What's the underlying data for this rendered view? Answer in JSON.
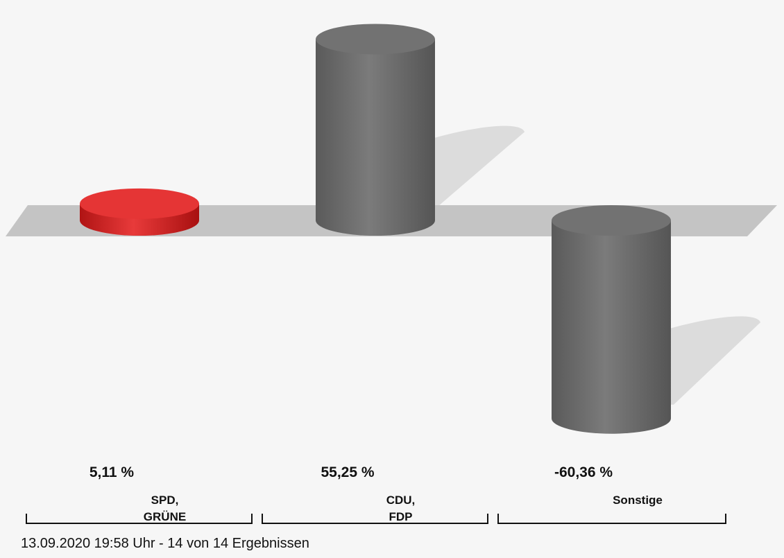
{
  "chart_data": {
    "type": "bar",
    "categories": [
      [
        "SPD,",
        "GRÜNE"
      ],
      [
        "CDU,",
        "FDP"
      ],
      [
        "Sonstige"
      ]
    ],
    "values": [
      5.11,
      55.25,
      -60.36
    ],
    "value_labels": [
      "5,11 %",
      "55,25 %",
      "-60,36 %"
    ],
    "ylim": [
      -65,
      65
    ],
    "grid": false,
    "title": "",
    "xlabel": "",
    "ylabel": ""
  },
  "colors": {
    "bars": [
      "#e02c2c",
      "#6f6f6f",
      "#6f6f6f"
    ],
    "baseline_band": "#c4c4c4",
    "shadow": "#dcdcdc",
    "background": "#f6f6f6"
  },
  "footer": {
    "text": "13.09.2020 19:58 Uhr - 14 von 14 Ergebnissen"
  }
}
